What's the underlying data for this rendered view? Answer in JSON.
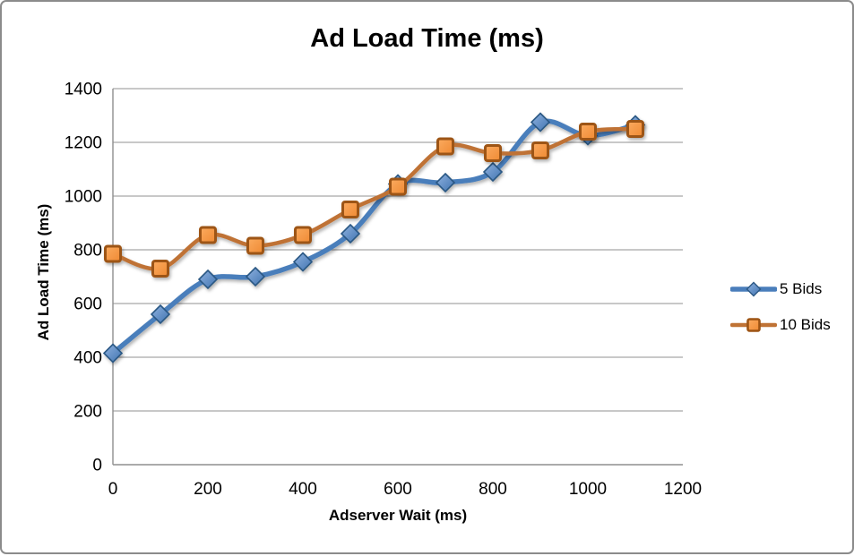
{
  "frame": {
    "background": "#FFFFFF",
    "border_color": "#8B8B8B"
  },
  "chart_data": {
    "type": "line",
    "title": "Ad Load Time (ms)",
    "xlabel": "Adserver Wait (ms)",
    "ylabel": "Ad Load Time (ms)",
    "x": [
      0,
      100,
      200,
      300,
      400,
      500,
      600,
      700,
      800,
      900,
      1000,
      1100
    ],
    "series": [
      {
        "name": "5 Bids",
        "marker": "diamond",
        "values": [
          415,
          560,
          690,
          700,
          755,
          860,
          1045,
          1050,
          1090,
          1275,
          1225,
          1265
        ],
        "line_color": "#4A7EBB",
        "marker_fill_light": "#8FB2E0",
        "marker_fill_dark": "#4174B0",
        "marker_stroke": "#2C5884"
      },
      {
        "name": "10 Bids",
        "marker": "square",
        "values": [
          785,
          730,
          855,
          815,
          855,
          950,
          1035,
          1185,
          1160,
          1170,
          1240,
          1250
        ],
        "line_color": "#BF7234",
        "marker_fill_light": "#FBAB60",
        "marker_fill_dark": "#EF8A33",
        "marker_stroke": "#9D5414"
      }
    ],
    "xlim": [
      0,
      1200
    ],
    "ylim": [
      0,
      1400
    ],
    "x_ticks": [
      0,
      200,
      400,
      600,
      800,
      1000,
      1200
    ],
    "y_ticks": [
      0,
      200,
      400,
      600,
      800,
      1000,
      1200,
      1400
    ],
    "grid": "horizontal",
    "smooth": true,
    "legend_position": "right",
    "colors": {
      "gridline": "#A6A6A6",
      "axis": "#8F8F8F",
      "tick_text": "#000000"
    }
  }
}
